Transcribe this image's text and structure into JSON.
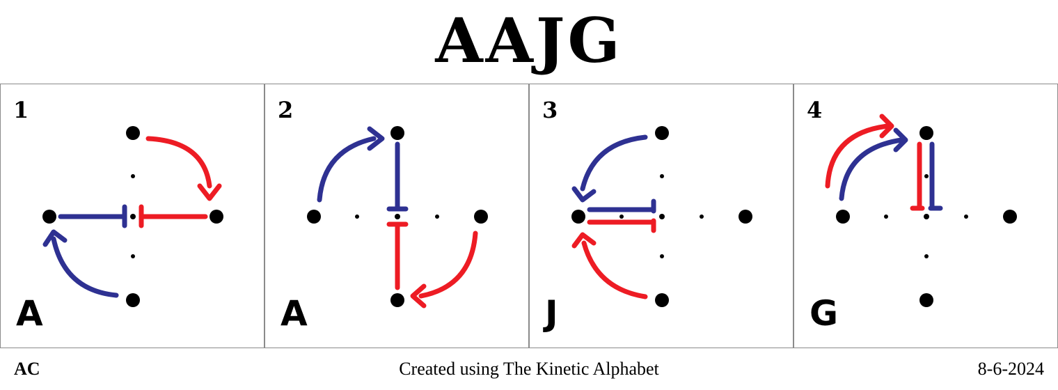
{
  "title": "AAJG",
  "colors": {
    "blue": "#2e3192",
    "red": "#ed1c24",
    "dot": "#000000",
    "border": "#8a8a8a"
  },
  "panels": [
    {
      "number": "1",
      "letter": "A"
    },
    {
      "number": "2",
      "letter": "A"
    },
    {
      "number": "3",
      "letter": "J"
    },
    {
      "number": "4",
      "letter": "G"
    }
  ],
  "footer": {
    "left": "AC",
    "center": "Created using The Kinetic Alphabet",
    "right": "8-6-2024"
  }
}
